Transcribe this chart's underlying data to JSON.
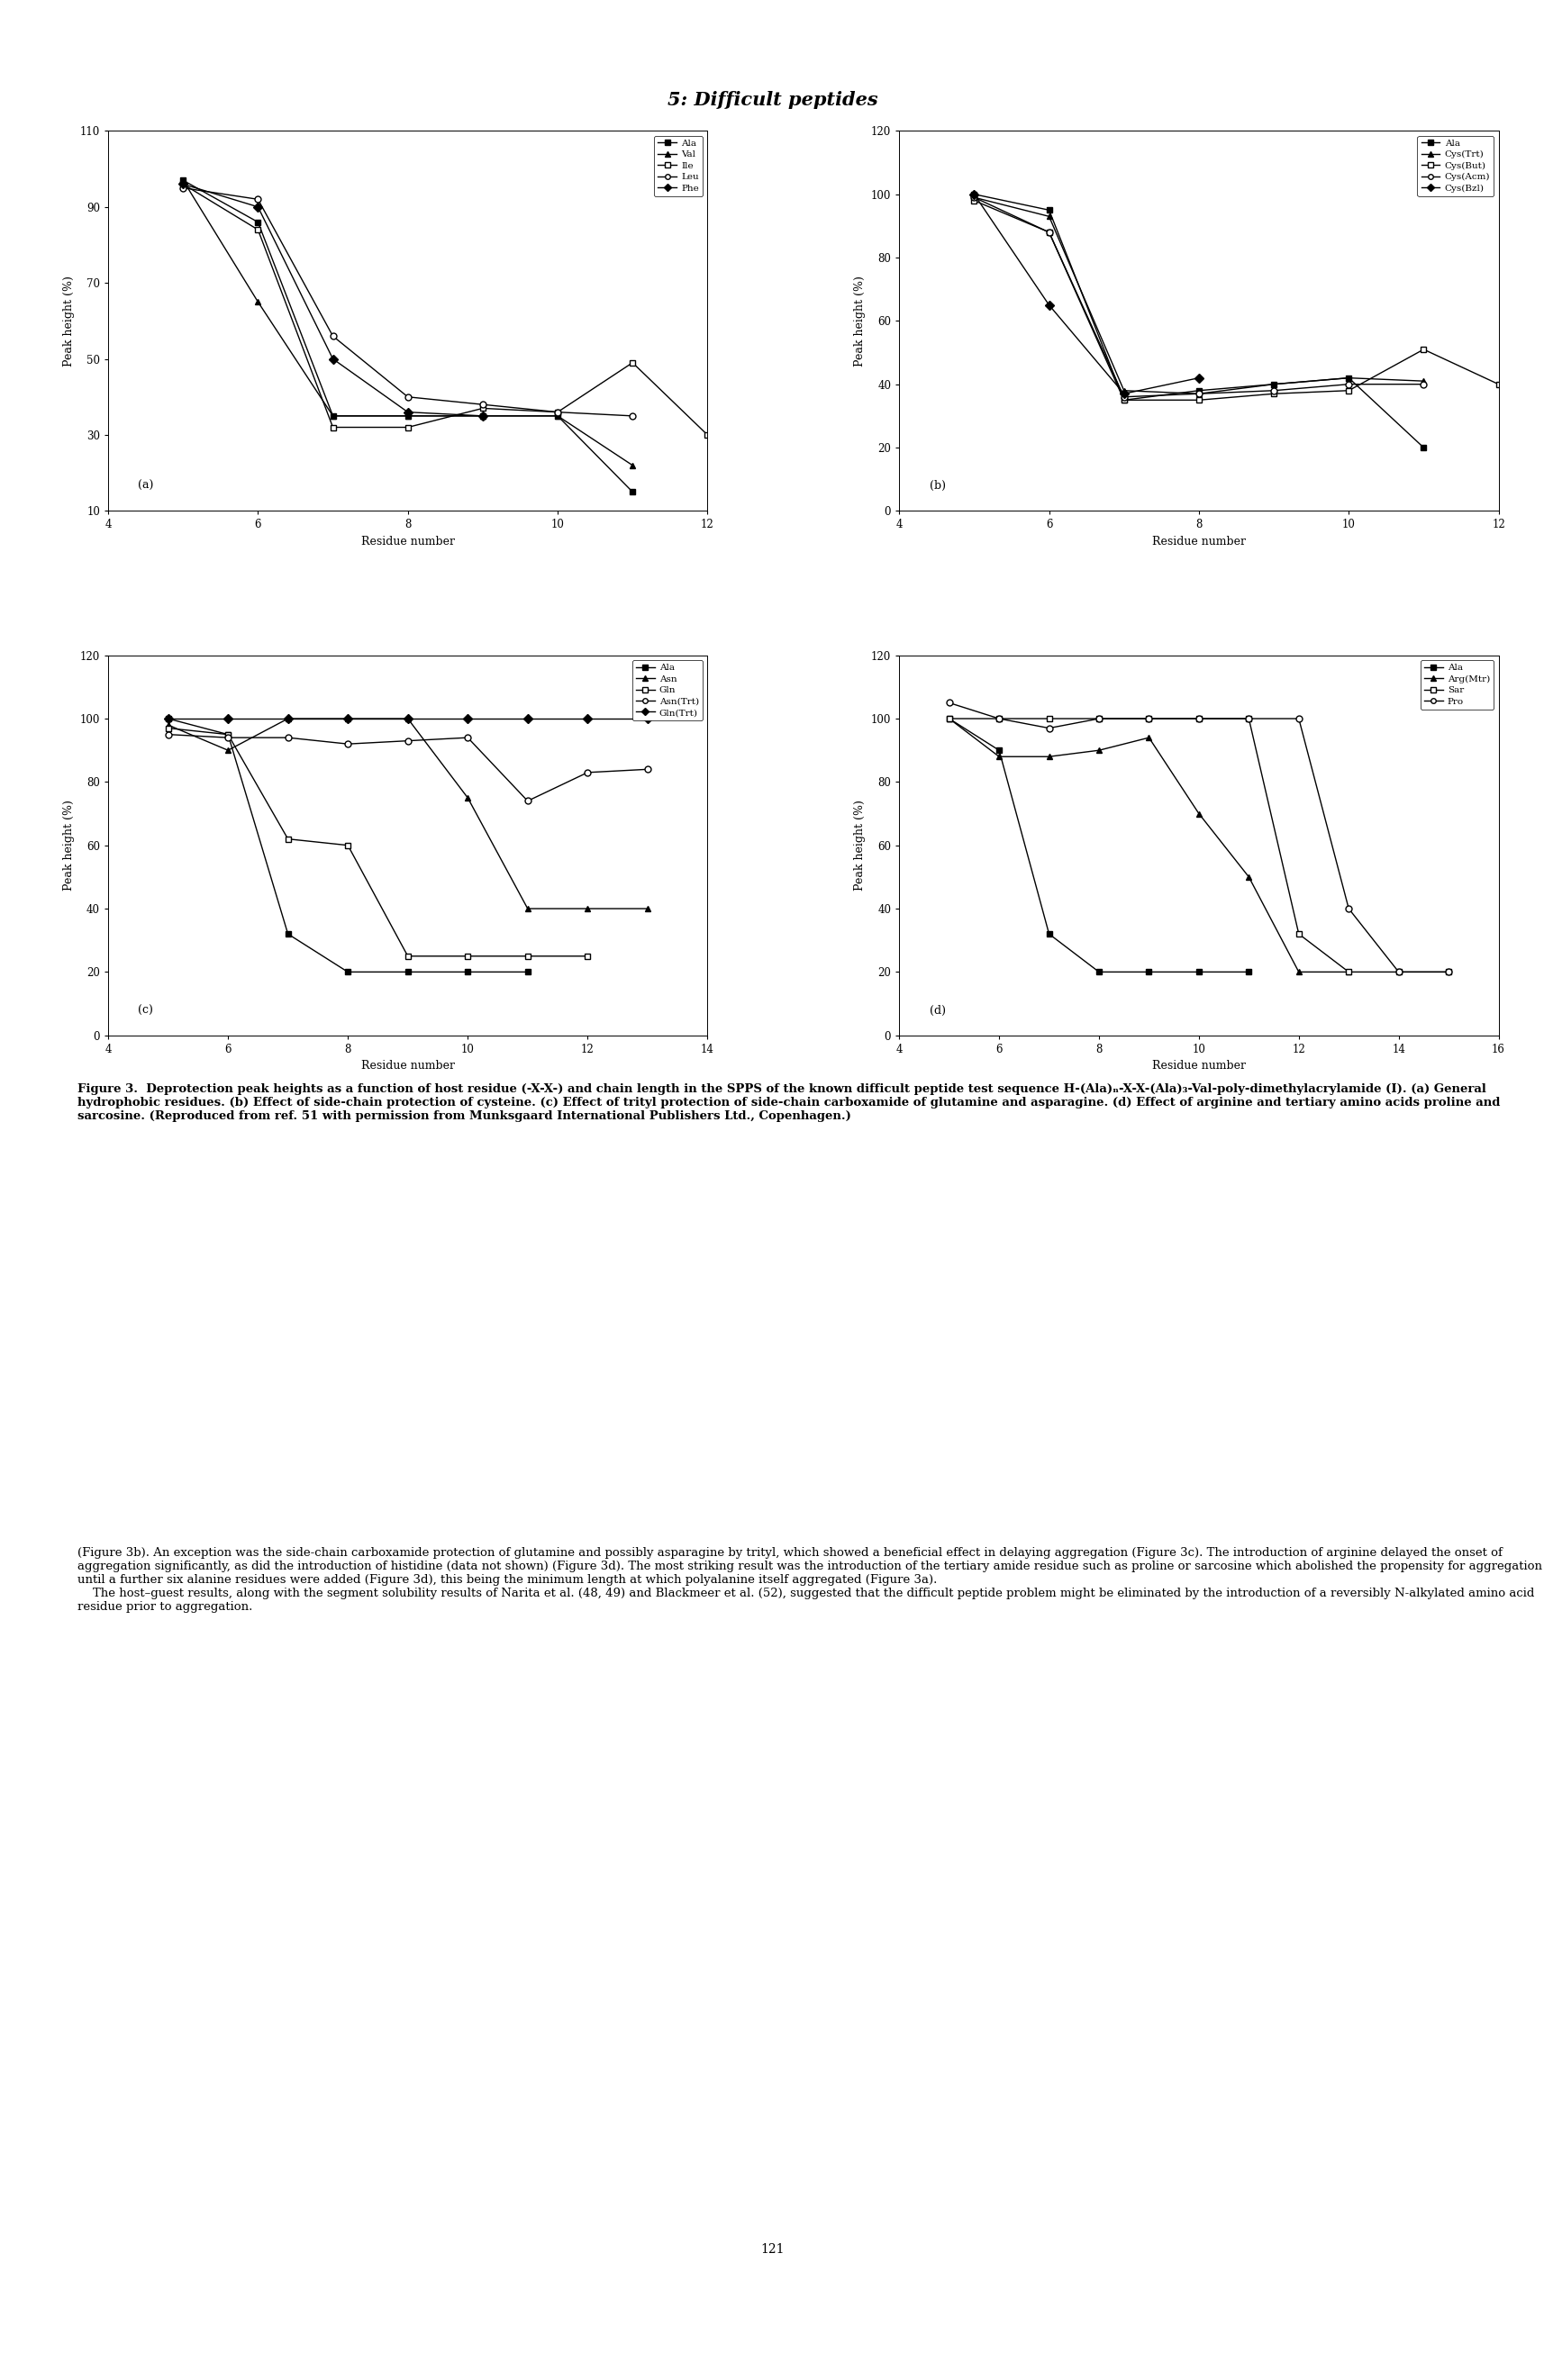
{
  "title": "5: Difficult peptides",
  "title_fontsize": 15,
  "title_style": "italic",
  "title_weight": "bold",
  "subplot_a": {
    "label": "(a)",
    "xlabel": "Residue number",
    "ylabel": "Peak height (%)",
    "xlim": [
      4,
      12
    ],
    "ylim": [
      10,
      110
    ],
    "xticks": [
      4,
      6,
      8,
      10,
      12
    ],
    "yticks": [
      10,
      30,
      50,
      70,
      90,
      110
    ],
    "series": [
      {
        "name": "Ala",
        "marker": "s",
        "x": [
          5,
          6,
          7,
          8,
          9,
          10,
          11
        ],
        "y": [
          97,
          86,
          35,
          35,
          35,
          35,
          15
        ],
        "filled": true
      },
      {
        "name": "Val",
        "marker": "^",
        "x": [
          5,
          6,
          7,
          8,
          9,
          10,
          11
        ],
        "y": [
          97,
          65,
          35,
          35,
          35,
          35,
          22
        ],
        "filled": true
      },
      {
        "name": "Ile",
        "marker": "s",
        "x": [
          5,
          6,
          7,
          8,
          9,
          10,
          11,
          12
        ],
        "y": [
          96,
          84,
          32,
          32,
          37,
          36,
          49,
          30
        ],
        "filled": false
      },
      {
        "name": "Leu",
        "marker": "o",
        "x": [
          5,
          6,
          7,
          8,
          9,
          10,
          11
        ],
        "y": [
          95,
          92,
          56,
          40,
          38,
          36,
          35
        ],
        "filled": false
      },
      {
        "name": "Phe",
        "marker": "D",
        "x": [
          5,
          6,
          7,
          8,
          9
        ],
        "y": [
          96,
          90,
          50,
          36,
          35
        ],
        "filled": true
      }
    ]
  },
  "subplot_b": {
    "label": "(b)",
    "xlabel": "Residue number",
    "ylabel": "Peak height (%)",
    "xlim": [
      4,
      12
    ],
    "ylim": [
      0,
      120
    ],
    "xticks": [
      4,
      6,
      8,
      10,
      12
    ],
    "yticks": [
      0,
      20,
      40,
      60,
      80,
      100,
      120
    ],
    "series": [
      {
        "name": "Ala",
        "marker": "s",
        "x": [
          5,
          6,
          7,
          8,
          9,
          10,
          11
        ],
        "y": [
          100,
          95,
          35,
          38,
          40,
          42,
          20
        ],
        "filled": true
      },
      {
        "name": "Cys(Trt)",
        "marker": "^",
        "x": [
          5,
          6,
          7,
          8,
          9,
          10,
          11
        ],
        "y": [
          99,
          93,
          38,
          37,
          40,
          42,
          41
        ],
        "filled": true
      },
      {
        "name": "Cys(But)",
        "marker": "s",
        "x": [
          5,
          6,
          7,
          8,
          9,
          10,
          11,
          12
        ],
        "y": [
          98,
          88,
          35,
          35,
          37,
          38,
          51,
          40
        ],
        "filled": false
      },
      {
        "name": "Cys(Acm)",
        "marker": "o",
        "x": [
          5,
          6,
          7,
          8,
          9,
          10,
          11
        ],
        "y": [
          99,
          88,
          36,
          37,
          38,
          40,
          40
        ],
        "filled": false
      },
      {
        "name": "Cys(Bzl)",
        "marker": "D",
        "x": [
          5,
          6,
          7,
          8
        ],
        "y": [
          100,
          65,
          37,
          42
        ],
        "filled": true
      }
    ]
  },
  "subplot_c": {
    "label": "(c)",
    "xlabel": "Residue number",
    "ylabel": "Peak height (%)",
    "xlim": [
      4,
      14
    ],
    "ylim": [
      0,
      120
    ],
    "xticks": [
      4,
      6,
      8,
      10,
      12,
      14
    ],
    "yticks": [
      0,
      20,
      40,
      60,
      80,
      100,
      120
    ],
    "series": [
      {
        "name": "Ala",
        "marker": "s",
        "x": [
          5,
          6,
          7,
          8,
          9,
          10,
          11
        ],
        "y": [
          100,
          95,
          32,
          20,
          20,
          20,
          20
        ],
        "filled": true
      },
      {
        "name": "Asn",
        "marker": "^",
        "x": [
          5,
          6,
          7,
          8,
          9,
          10,
          11,
          12,
          13
        ],
        "y": [
          98,
          90,
          100,
          100,
          100,
          75,
          40,
          40,
          40
        ],
        "filled": true
      },
      {
        "name": "Gln",
        "marker": "s",
        "x": [
          5,
          6,
          7,
          8,
          9,
          10,
          11,
          12
        ],
        "y": [
          97,
          95,
          62,
          60,
          25,
          25,
          25,
          25
        ],
        "filled": false
      },
      {
        "name": "Asn(Trt)",
        "marker": "o",
        "x": [
          5,
          6,
          7,
          8,
          9,
          10,
          11,
          12,
          13
        ],
        "y": [
          95,
          94,
          94,
          92,
          93,
          94,
          74,
          83,
          84
        ],
        "filled": false
      },
      {
        "name": "Gln(Trt)",
        "marker": "D",
        "x": [
          5,
          6,
          7,
          8,
          9,
          10,
          11,
          12,
          13
        ],
        "y": [
          100,
          100,
          100,
          100,
          100,
          100,
          100,
          100,
          100
        ],
        "filled": true
      }
    ]
  },
  "subplot_d": {
    "label": "(d)",
    "xlabel": "Residue number",
    "ylabel": "Peak height (%)",
    "xlim": [
      4,
      16
    ],
    "ylim": [
      0,
      120
    ],
    "xticks": [
      4,
      6,
      8,
      10,
      12,
      14,
      16
    ],
    "yticks": [
      0,
      20,
      40,
      60,
      80,
      100,
      120
    ],
    "series": [
      {
        "name": "Ala",
        "marker": "s",
        "x": [
          5,
          6,
          7,
          8,
          9,
          10,
          11
        ],
        "y": [
          100,
          90,
          32,
          20,
          20,
          20,
          20
        ],
        "filled": true
      },
      {
        "name": "Arg(Mtr)",
        "marker": "^",
        "x": [
          5,
          6,
          7,
          8,
          9,
          10,
          11,
          12,
          13
        ],
        "y": [
          100,
          88,
          88,
          90,
          94,
          70,
          50,
          20,
          20
        ],
        "filled": true
      },
      {
        "name": "Sar",
        "marker": "s",
        "x": [
          5,
          6,
          7,
          8,
          9,
          10,
          11,
          12,
          13,
          14,
          15
        ],
        "y": [
          100,
          100,
          100,
          100,
          100,
          100,
          100,
          32,
          20,
          20,
          20
        ],
        "filled": false
      },
      {
        "name": "Pro",
        "marker": "o",
        "x": [
          5,
          6,
          7,
          8,
          9,
          10,
          11,
          12,
          13,
          14,
          15
        ],
        "y": [
          105,
          100,
          97,
          100,
          100,
          100,
          100,
          100,
          40,
          20,
          20
        ],
        "filled": false
      }
    ]
  },
  "bg_color": "#ffffff",
  "line_color": "#000000",
  "caption": {
    "bold_prefix": "Figure 3.",
    "bold_rest": "  Deprotection peak heights as a function of host residue (-X-X-) and chain length in the SPPS of the known difficult peptide test sequence H-(Ala)ₙ-X-X-(Ala)₃-Val-poly-dimethylacrylamide (I). (a) General hydrophobic residues. (b) Effect of side-chain protection of cysteine. (c) Effect of trityl protection of side-chain carboxamide of glutamine and asparagine. (d) Effect of arginine and tertiary amino acids proline and sarcosine. (Reproduced from ref. 51 with permission from Munksgaard International Publishers Ltd., Copenhagen.)"
  },
  "body_italic_prefix": "(Figure 3b).",
  "body_text": " An exception was the side-chain carboxamide protection of glutamine and possibly asparagine by trityl, which showed a beneficial effect in delaying aggregation (Figure 3c). The introduction of arginine delayed the onset of aggregation significantly, as did the introduction of histidine (data not shown) (Figure 3d). The most striking result was the introduction of the tertiary amide residue such as proline or sarcosine which abolished the propensity for aggregation until a further six alanine residues were added (Figure 3d), this being the minimum length at which polyalanine itself aggregated (Figure 3a).\n    The host–guest results, along with the segment solubility results of Narita et al. (48, 49) and Blackmeer et al. (52), suggested that the difficult peptide problem might be eliminated by the introduction of a reversibly N-alkylated amino acid residue prior to aggregation.",
  "page_number": "121"
}
